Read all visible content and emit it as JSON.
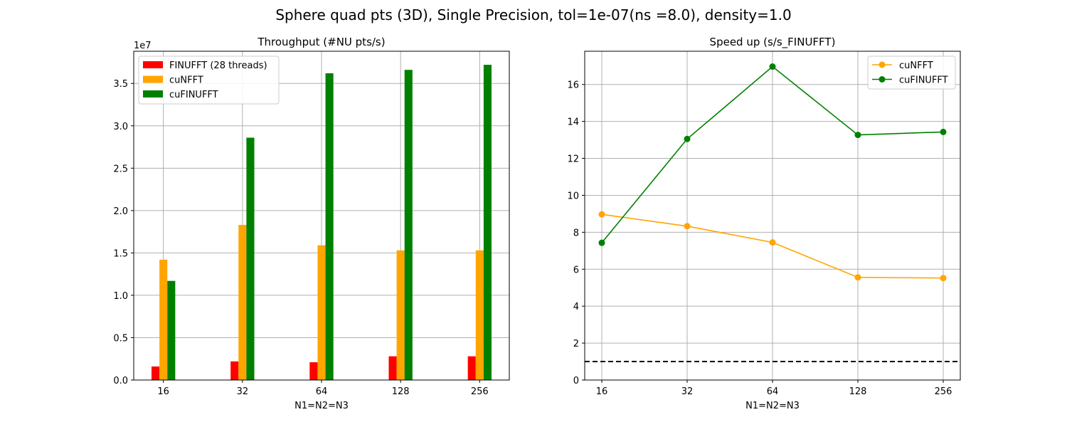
{
  "figure_title": "Sphere quad pts (3D), Single Precision, tol=1e-07(ns =8.0), density=1.0",
  "colors": {
    "finufft": "#ff0000",
    "cunfft": "#ffa500",
    "cufinufft": "#008000",
    "grid": "#b0b0b0",
    "reference_line": "#000000"
  },
  "chart_data": [
    {
      "type": "bar",
      "title": "Throughput (#NU pts/s)",
      "xlabel": "N1=N2=N3",
      "ylabel": "",
      "categories": [
        "16",
        "32",
        "64",
        "128",
        "256"
      ],
      "y_multiplier_label": "1e7",
      "ylim": [
        0,
        3.88
      ],
      "yticks": [
        0.0,
        0.5,
        1.0,
        1.5,
        2.0,
        2.5,
        3.0,
        3.5
      ],
      "ytick_labels": [
        "0.0",
        "0.5",
        "1.0",
        "1.5",
        "2.0",
        "2.5",
        "3.0",
        "3.5"
      ],
      "grid": true,
      "legend_position": "top-left",
      "series": [
        {
          "name": "FINUFFT (28 threads)",
          "color": "#ff0000",
          "values": [
            0.16,
            0.22,
            0.21,
            0.28,
            0.28
          ]
        },
        {
          "name": "cuNFFT",
          "color": "#ffa500",
          "values": [
            1.42,
            1.83,
            1.59,
            1.53,
            1.53
          ]
        },
        {
          "name": "cuFINUFFT",
          "color": "#008000",
          "values": [
            1.17,
            2.86,
            3.62,
            3.66,
            3.72
          ]
        }
      ]
    },
    {
      "type": "line",
      "title": "Speed up (s/s_FINUFFT)",
      "xlabel": "N1=N2=N3",
      "ylabel": "",
      "categories": [
        "16",
        "32",
        "64",
        "128",
        "256"
      ],
      "ylim": [
        0,
        17.8
      ],
      "yticks": [
        0,
        2,
        4,
        6,
        8,
        10,
        12,
        14,
        16
      ],
      "ytick_labels": [
        "0",
        "2",
        "4",
        "6",
        "8",
        "10",
        "12",
        "14",
        "16"
      ],
      "grid": true,
      "legend_position": "top-right",
      "reference_line": {
        "y": 1.0,
        "style": "dashed"
      },
      "series": [
        {
          "name": "cuNFFT",
          "color": "#ffa500",
          "values": [
            8.97,
            8.33,
            7.45,
            5.56,
            5.52
          ]
        },
        {
          "name": "cuFINUFFT",
          "color": "#008000",
          "values": [
            7.43,
            13.05,
            16.97,
            13.27,
            13.43
          ]
        }
      ]
    }
  ]
}
